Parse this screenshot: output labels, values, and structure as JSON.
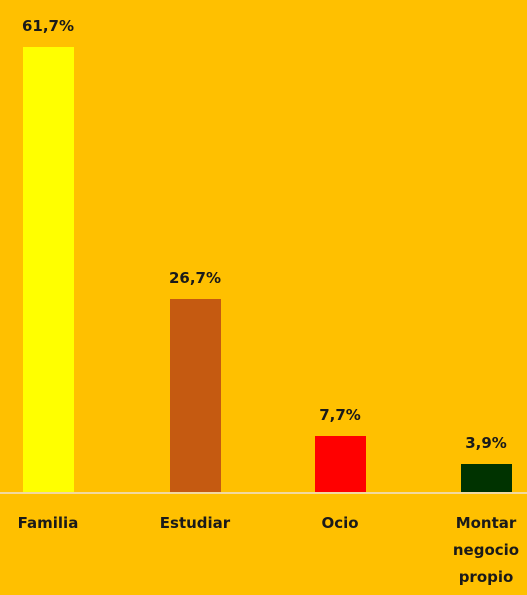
{
  "chart_data": {
    "type": "bar",
    "categories": [
      "Familia",
      "Estudiar",
      "Ocio",
      "Montar negocio propio"
    ],
    "values": [
      61.7,
      26.7,
      7.7,
      3.9
    ],
    "value_labels": [
      "61,7%",
      "26,7%",
      "7,7%",
      "3,9%"
    ],
    "colors": [
      "#ffff00",
      "#c55a11",
      "#ff0000",
      "#003300"
    ]
  }
}
